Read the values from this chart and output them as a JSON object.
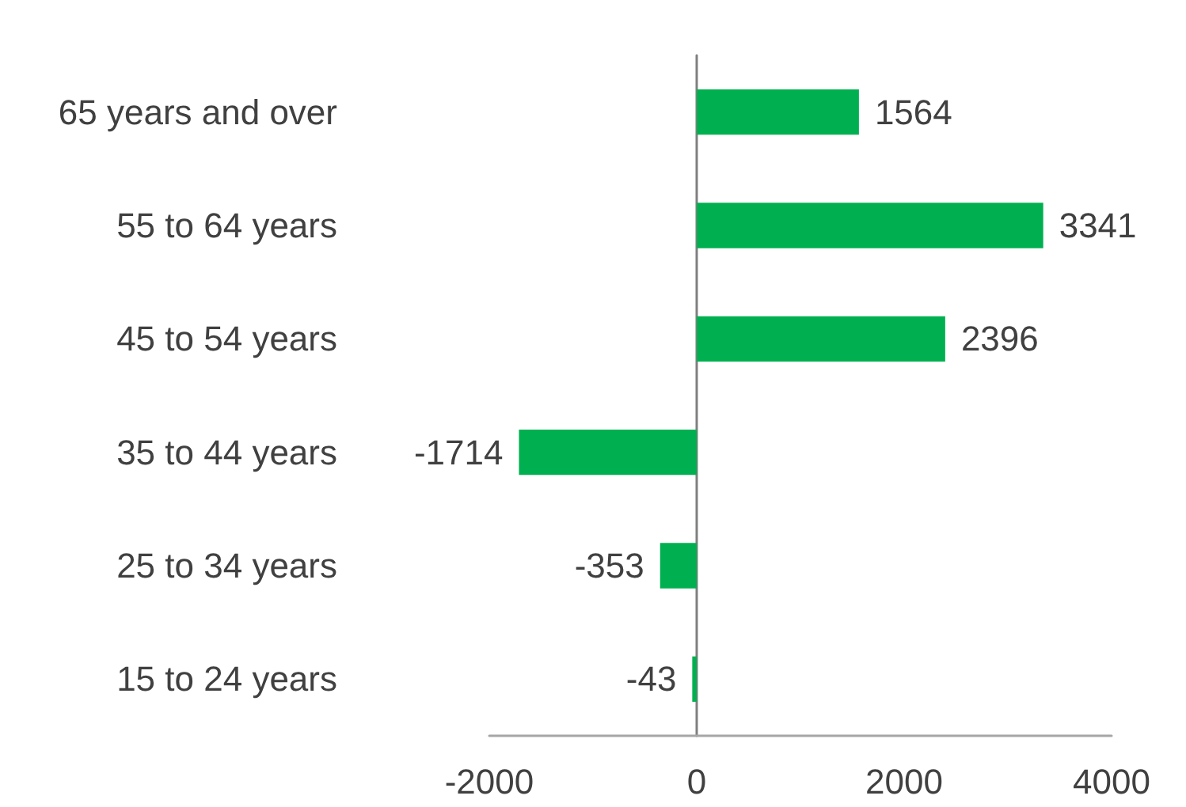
{
  "chart_data": {
    "type": "bar",
    "orientation": "horizontal",
    "categories": [
      "65 years and over",
      "55 to 64 years",
      "45 to 54 years",
      "35 to 44 years",
      "25 to 34 years",
      "15 to 24 years"
    ],
    "values": [
      1564,
      3341,
      2396,
      -1714,
      -353,
      -43
    ],
    "color": "#00b050",
    "xlim": [
      -2000,
      4000
    ],
    "xticks": [
      -2000,
      0,
      2000,
      4000
    ],
    "data_labels": true
  }
}
